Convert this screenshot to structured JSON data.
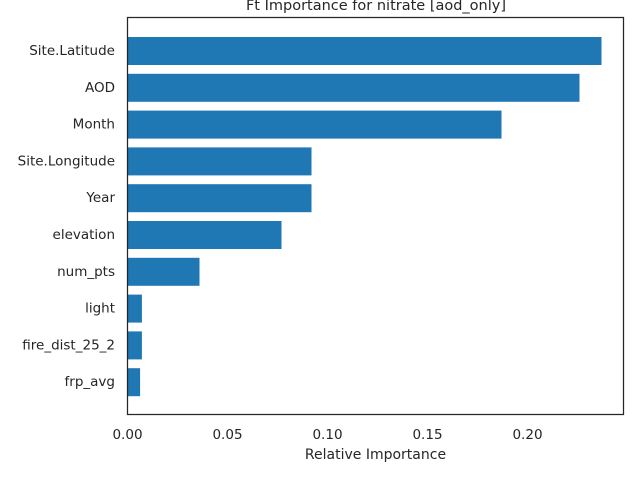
{
  "chart_data": {
    "type": "bar",
    "orientation": "horizontal",
    "title": "Ft Importance for nitrate [aod_only]",
    "xlabel": "Relative Importance",
    "ylabel": "",
    "xlim": [
      0.0,
      0.248
    ],
    "xticks": [
      "0.00",
      "0.05",
      "0.10",
      "0.15",
      "0.20"
    ],
    "grid": false,
    "bar_color": "#1f77b4",
    "categories": [
      "Site.Latitude",
      "AOD",
      "Month",
      "Site.Longitude",
      "Year",
      "elevation",
      "num_pts",
      "light",
      "fire_dist_25_2",
      "frp_avg"
    ],
    "values": [
      0.237,
      0.226,
      0.187,
      0.092,
      0.092,
      0.077,
      0.036,
      0.0072,
      0.0072,
      0.0063
    ]
  }
}
